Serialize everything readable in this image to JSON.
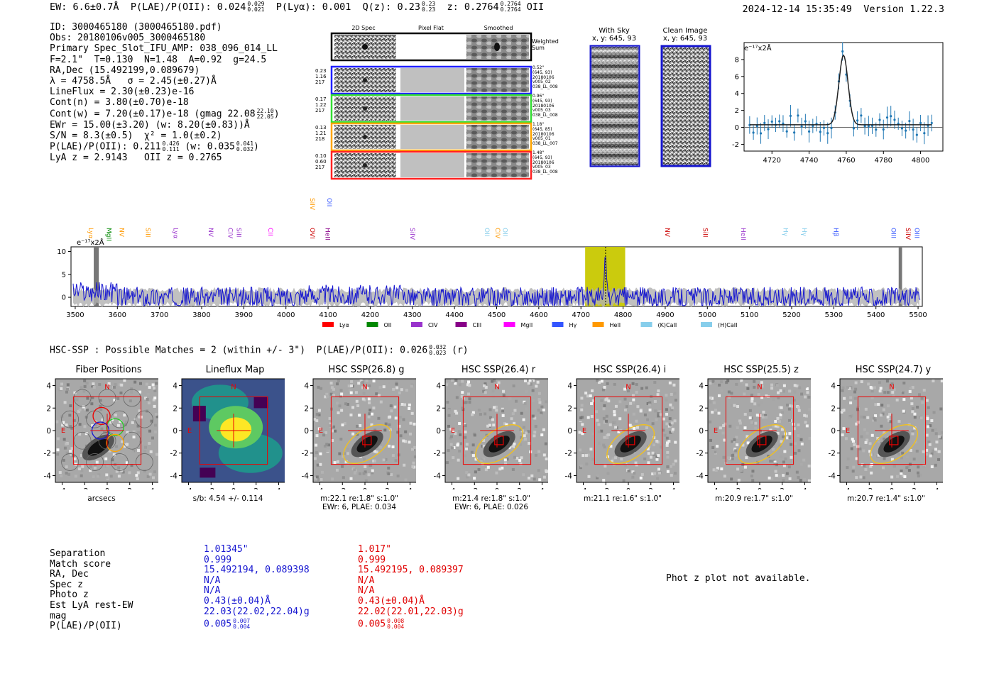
{
  "header": {
    "ew": "EW: 6.6±0.7Å",
    "plae_label": "P(LAE)/P(OII): 0.024",
    "plae_hi": "0.029",
    "plae_lo": "0.021",
    "plya": "P(Lyα): 0.001",
    "qz_label": "Q(z): 0.23",
    "qz_hi": "0.23",
    "qz_lo": "0.23",
    "z_label": "z: 0.2764",
    "z_hi": "0.2764",
    "z_lo": "0.2764",
    "z_line": "OII",
    "timestamp": "2024-12-14 15:35:49",
    "version": "Version 1.22.3"
  },
  "info": {
    "id": "ID: 3000465180 (3000465180.pdf)",
    "obs": "Obs: 20180106v005_3000465180",
    "primary": "Primary Spec_Slot_IFU_AMP: 038_096_014_LL",
    "fparams": "F=2.1\"  T=0.130  N=1.48  A=0.92  g=24.5",
    "radec": "RA,Dec (15.492199,0.089679)",
    "lambda": "λ = 4758.5Å   σ = 2.45(±0.27)Å",
    "lineflux": "LineFlux = 2.30(±0.23)e-16",
    "contn": "Cont(n) = 3.80(±0.70)e-18",
    "contw": "Cont(w) = 7.20(±0.17)e-18 (gmag 22.08",
    "contw_hi": "22.10",
    "contw_lo": "22.05",
    "ewr": "EWr = 15.00(±3.20) (w: 8.20(±0.83))Å",
    "sn": "S/N = 8.3(±0.5)  χ² = 1.0(±0.2)",
    "plae": "P(LAE)/P(OII): 0.211",
    "plae_hi": "0.426",
    "plae_lo": "0.111",
    "plae_w": "(w: 0.035",
    "plae_w_hi": "0.041",
    "plae_w_lo": "0.032",
    "lya_z": "LyA z = 2.9143   OII z = 0.2765"
  },
  "spec_panels": {
    "col_titles": [
      "2D Spec",
      "Pixel Flat",
      "Smoothed"
    ],
    "weighted_sum": "Weighted\nSum",
    "rows": [
      {
        "left": [
          "0.23",
          "1.16",
          "217"
        ],
        "right": [
          "0.52\"",
          "(645, 93)",
          "20180106",
          "v005_02",
          "038_LL_008"
        ],
        "color": "#1f1fff"
      },
      {
        "left": [
          "0.17",
          "1.22",
          "217"
        ],
        "right": [
          "0.96\"",
          "(645, 93)",
          "20180106",
          "v005_03",
          "038_LL_008"
        ],
        "color": "#33dd33"
      },
      {
        "left": [
          "0.13",
          "1.21",
          "218"
        ],
        "right": [
          "1.18\"",
          "(645, 85)",
          "20180106",
          "v005_01",
          "038_LL_007"
        ],
        "color": "#ffa500"
      },
      {
        "left": [
          "0.10",
          "0.60",
          "217"
        ],
        "right": [
          "1.48\"",
          "(645, 93)",
          "20180106",
          "v005_03",
          "038_LL_008"
        ],
        "color": "#ff2222"
      }
    ]
  },
  "cutouts_small": {
    "with_sky": {
      "title": "With Sky",
      "coords": "x, y: 645, 93"
    },
    "clean": {
      "title": "Clean Image",
      "coords": "x, y: 645, 93"
    }
  },
  "zoom_chart": {
    "ylabel": "e⁻¹⁷x2Å",
    "xticks": [
      "4720",
      "4740",
      "4760",
      "4780",
      "4800"
    ],
    "yticks": [
      "8",
      "6",
      "4",
      "2",
      "0",
      "-2"
    ]
  },
  "chart_data": {
    "type": "line",
    "title": "",
    "ylabel": "e⁻¹⁷x2Å",
    "xlim": [
      3490,
      5510
    ],
    "ylim": [
      -2,
      11
    ],
    "xticks": [
      "3500",
      "3600",
      "3700",
      "3800",
      "3900",
      "4000",
      "4100",
      "4200",
      "4300",
      "4400",
      "4500",
      "4600",
      "4700",
      "4800",
      "4900",
      "5000",
      "5100",
      "5200",
      "5300",
      "5400",
      "5500"
    ],
    "yticks": [
      "10",
      "5",
      "0"
    ],
    "highlight": {
      "from": 4710,
      "to": 4805,
      "peak": 4758.5
    },
    "line_labels": [
      {
        "name": "Lyα",
        "x": 3527,
        "color": "#ff9900"
      },
      {
        "name": "MgII",
        "x": 3570,
        "color": "#008800"
      },
      {
        "name": "NV",
        "x": 3600,
        "color": "#ff9900"
      },
      {
        "name": "SiII",
        "x": 3663,
        "color": "#ff9900"
      },
      {
        "name": "Lyα",
        "x": 3728,
        "color": "#9933cc"
      },
      {
        "name": "NV",
        "x": 3812,
        "color": "#9933cc"
      },
      {
        "name": "CIV",
        "x": 3858,
        "color": "#9933cc"
      },
      {
        "name": "SiII",
        "x": 3878,
        "color": "#9933cc"
      },
      {
        "name": "CII",
        "x": 3953,
        "color": "#ff00ff"
      },
      {
        "name": "OVI",
        "x": 4053,
        "color": "#cc0000"
      },
      {
        "name": "SiIV",
        "x": 4053,
        "color": "#ff9900"
      },
      {
        "name": "HeII",
        "x": 4089,
        "color": "#880088"
      },
      {
        "name": "OII",
        "x": 4093,
        "color": "#3355ff"
      },
      {
        "name": "SiIV",
        "x": 4290,
        "color": "#9933cc"
      },
      {
        "name": "OII",
        "x": 4467,
        "color": "#87ceeb"
      },
      {
        "name": "CIV",
        "x": 4492,
        "color": "#ff9900"
      },
      {
        "name": "OII",
        "x": 4510,
        "color": "#87ceeb"
      },
      {
        "name": "NV",
        "x": 4895,
        "color": "#cc0000"
      },
      {
        "name": "SiII",
        "x": 4985,
        "color": "#cc0000"
      },
      {
        "name": "HeII",
        "x": 5075,
        "color": "#9933cc"
      },
      {
        "name": "Hγ",
        "x": 5176,
        "color": "#87ceeb"
      },
      {
        "name": "Hγ",
        "x": 5220,
        "color": "#87ceeb"
      },
      {
        "name": "Hβ",
        "x": 5295,
        "color": "#3355ff"
      },
      {
        "name": "OIII",
        "x": 5432,
        "color": "#3355ff"
      },
      {
        "name": "SiIV",
        "x": 5466,
        "color": "#cc0000"
      },
      {
        "name": "OIII",
        "x": 5487,
        "color": "#3355ff"
      }
    ],
    "legend": [
      {
        "name": "Lyα",
        "color": "#ff0000"
      },
      {
        "name": "OII",
        "color": "#008800"
      },
      {
        "name": "CIV",
        "color": "#9933cc"
      },
      {
        "name": "CIII",
        "color": "#880088"
      },
      {
        "name": "MgII",
        "color": "#ff00ff"
      },
      {
        "name": "Hγ",
        "color": "#3355ff"
      },
      {
        "name": "HeII",
        "color": "#ff9900"
      },
      {
        "name": "(K)CaII",
        "color": "#87ceeb"
      },
      {
        "name": "(H)CaII",
        "color": "#87ceeb"
      }
    ]
  },
  "hsc": {
    "summary": "HSC-SSP : Possible Matches = 2 (within +/- 3\")  P(LAE)/P(OII): 0.026",
    "summary_hi": "0.032",
    "summary_lo": "0.023",
    "summary_band": "(r)",
    "panels": [
      {
        "title": "Fiber Positions",
        "foot": [
          "arcsecs"
        ]
      },
      {
        "title": "Lineflux Map",
        "foot": [
          "s/b: 4.54 +/- 0.114"
        ]
      },
      {
        "title": "HSC SSP(26.8) g",
        "foot": [
          "m:22.1  re:1.8\"  s:1.0\"",
          "EWr: 6, PLAE: 0.034"
        ]
      },
      {
        "title": "HSC SSP(26.4) r",
        "foot": [
          "m:21.4  re:1.8\"  s:1.0\"",
          "EWr: 6, PLAE: 0.026"
        ]
      },
      {
        "title": "HSC SSP(26.4) i",
        "foot": [
          "m:21.1  re:1.6\"  s:1.0\""
        ]
      },
      {
        "title": "HSC SSP(25.5) z",
        "foot": [
          "m:20.9  re:1.7\"  s:1.0\""
        ]
      },
      {
        "title": "HSC SSP(24.7) y",
        "foot": [
          "m:20.7  re:1.4\"  s:1.0\""
        ]
      }
    ],
    "axis_ticks": [
      "4",
      "2",
      "0",
      "-2",
      "-4"
    ],
    "x_ticks": [
      "-4",
      "-2",
      "0",
      "2",
      "4"
    ],
    "n_label": "N",
    "e_label": "E"
  },
  "matches": {
    "labels": [
      "Separation",
      "Match score",
      "RA, Dec",
      "Spec z",
      "Photo z",
      "Est LyA rest-EW",
      "mag",
      "P(LAE)/P(OII)"
    ],
    "m1": [
      "1.01345\"",
      "0.999",
      "15.492194, 0.089398",
      "N/A",
      "N/A",
      "0.43(±0.04)Å",
      "22.03(22.02,22.04)g",
      "0.005"
    ],
    "m1_hi": "0.007",
    "m1_lo": "0.004",
    "m2": [
      "1.017\"",
      "0.999",
      "15.492195, 0.089397",
      "N/A",
      "N/A",
      "0.43(±0.04)Å",
      "22.02(22.01,22.03)g",
      "0.005"
    ],
    "m2_hi": "0.008",
    "m2_lo": "0.004",
    "photz_note": "Phot z plot not available."
  }
}
